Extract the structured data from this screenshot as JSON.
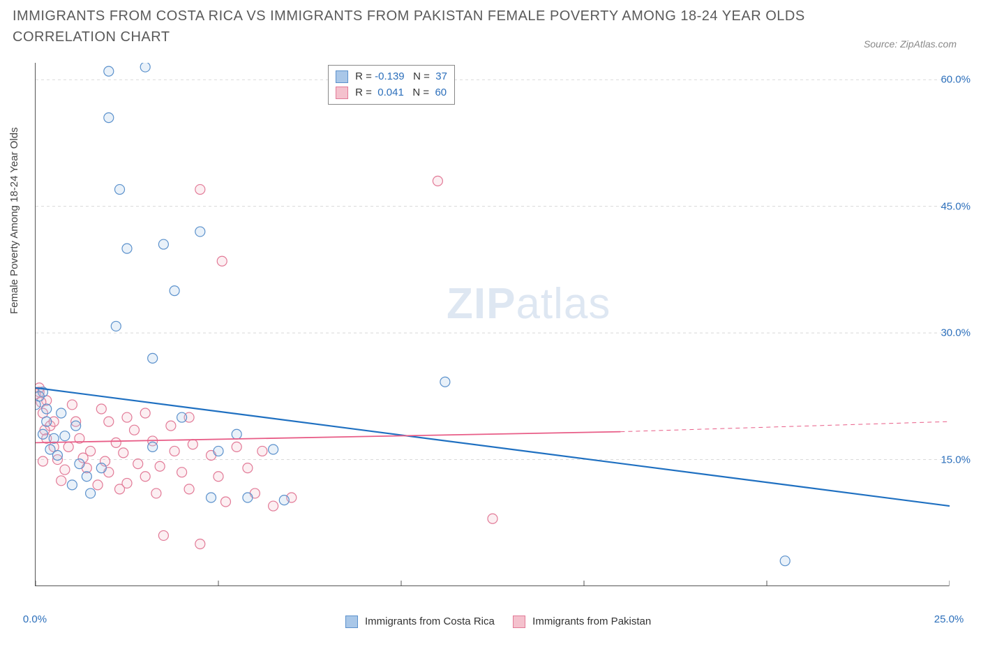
{
  "title": "IMMIGRANTS FROM COSTA RICA VS IMMIGRANTS FROM PAKISTAN FEMALE POVERTY AMONG 18-24 YEAR OLDS CORRELATION CHART",
  "source_label": "Source: ZipAtlas.com",
  "ylabel": "Female Poverty Among 18-24 Year Olds",
  "watermark_zip": "ZIP",
  "watermark_atlas": "atlas",
  "chart": {
    "type": "scatter",
    "xlim": [
      0,
      25
    ],
    "ylim": [
      0,
      62
    ],
    "x_ticks": [
      0,
      5,
      10,
      15,
      20,
      25
    ],
    "x_tick_labels": [
      "0.0%",
      "",
      "",
      "",
      "",
      "25.0%"
    ],
    "y_ticks": [
      15,
      30,
      45,
      60
    ],
    "y_tick_labels": [
      "15.0%",
      "30.0%",
      "45.0%",
      "60.0%"
    ],
    "grid_color": "#d9d9d9",
    "background": "#ffffff",
    "marker_radius": 7,
    "marker_stroke_width": 1.2,
    "marker_fill_opacity": 0.25
  },
  "series": {
    "costa_rica": {
      "label": "Immigrants from Costa Rica",
      "color_fill": "#a9c7e8",
      "color_stroke": "#5b91cc",
      "line_color": "#1f70c1",
      "line_width": 2.2,
      "r_value": "-0.139",
      "n_value": "37",
      "regression": {
        "x1": 0,
        "y1": 23.5,
        "x2": 25,
        "y2": 9.5
      },
      "points": [
        [
          0.2,
          23.0
        ],
        [
          0.0,
          21.5
        ],
        [
          0.3,
          19.5
        ],
        [
          0.2,
          18.0
        ],
        [
          0.5,
          17.5
        ],
        [
          0.4,
          16.2
        ],
        [
          0.6,
          15.5
        ],
        [
          0.1,
          22.5
        ],
        [
          0.8,
          17.8
        ],
        [
          1.0,
          12.0
        ],
        [
          1.2,
          14.5
        ],
        [
          1.4,
          13.0
        ],
        [
          1.5,
          11.0
        ],
        [
          2.0,
          61.0
        ],
        [
          2.2,
          30.8
        ],
        [
          2.0,
          55.5
        ],
        [
          2.5,
          40.0
        ],
        [
          2.3,
          47.0
        ],
        [
          3.0,
          61.5
        ],
        [
          3.2,
          16.5
        ],
        [
          3.2,
          27.0
        ],
        [
          3.5,
          40.5
        ],
        [
          3.8,
          35.0
        ],
        [
          4.0,
          20.0
        ],
        [
          4.5,
          42.0
        ],
        [
          4.8,
          10.5
        ],
        [
          5.0,
          16.0
        ],
        [
          5.5,
          18.0
        ],
        [
          5.8,
          10.5
        ],
        [
          6.5,
          16.2
        ],
        [
          6.8,
          10.2
        ],
        [
          11.2,
          24.2
        ],
        [
          20.5,
          3.0
        ],
        [
          1.8,
          14.0
        ],
        [
          0.7,
          20.5
        ],
        [
          1.1,
          19.0
        ],
        [
          0.3,
          21.0
        ]
      ]
    },
    "pakistan": {
      "label": "Immigrants from Pakistan",
      "color_fill": "#f4c1cd",
      "color_stroke": "#e27a97",
      "line_color": "#e85d87",
      "line_width": 1.8,
      "r_value": "0.041",
      "n_value": "60",
      "regression_solid": {
        "x1": 0,
        "y1": 17.0,
        "x2": 16,
        "y2": 18.3
      },
      "regression_dashed": {
        "x1": 16,
        "y1": 18.3,
        "x2": 25,
        "y2": 19.5
      },
      "points": [
        [
          0.1,
          23.0
        ],
        [
          0.3,
          22.0
        ],
        [
          0.2,
          20.5
        ],
        [
          0.4,
          19.0
        ],
        [
          0.3,
          17.5
        ],
        [
          0.5,
          16.5
        ],
        [
          0.6,
          15.0
        ],
        [
          0.2,
          14.8
        ],
        [
          0.8,
          13.8
        ],
        [
          0.7,
          12.5
        ],
        [
          1.0,
          21.5
        ],
        [
          1.1,
          19.5
        ],
        [
          1.2,
          17.5
        ],
        [
          1.5,
          16.0
        ],
        [
          1.4,
          14.0
        ],
        [
          1.7,
          12.0
        ],
        [
          1.8,
          21.0
        ],
        [
          2.0,
          19.5
        ],
        [
          2.2,
          17.0
        ],
        [
          2.0,
          13.5
        ],
        [
          2.3,
          11.5
        ],
        [
          2.5,
          20.0
        ],
        [
          2.7,
          18.5
        ],
        [
          2.8,
          14.5
        ],
        [
          2.5,
          12.2
        ],
        [
          3.0,
          20.5
        ],
        [
          3.2,
          17.2
        ],
        [
          3.0,
          13.0
        ],
        [
          3.3,
          11.0
        ],
        [
          3.5,
          6.0
        ],
        [
          3.7,
          19.0
        ],
        [
          3.8,
          16.0
        ],
        [
          4.0,
          13.5
        ],
        [
          4.2,
          11.5
        ],
        [
          4.5,
          5.0
        ],
        [
          4.2,
          20.0
        ],
        [
          4.5,
          47.0
        ],
        [
          4.8,
          15.5
        ],
        [
          5.0,
          13.0
        ],
        [
          5.1,
          38.5
        ],
        [
          5.2,
          10.0
        ],
        [
          5.5,
          16.5
        ],
        [
          5.8,
          14.0
        ],
        [
          6.0,
          11.0
        ],
        [
          6.2,
          16.0
        ],
        [
          6.5,
          9.5
        ],
        [
          7.0,
          10.5
        ],
        [
          11.0,
          48.0
        ],
        [
          12.5,
          8.0
        ],
        [
          1.3,
          15.2
        ],
        [
          1.9,
          14.8
        ],
        [
          2.4,
          15.8
        ],
        [
          3.4,
          14.2
        ],
        [
          4.3,
          16.8
        ],
        [
          0.1,
          23.5
        ],
        [
          0.0,
          22.8
        ],
        [
          0.15,
          21.8
        ],
        [
          0.25,
          18.5
        ],
        [
          0.5,
          19.5
        ],
        [
          0.9,
          16.5
        ]
      ]
    }
  },
  "stats_box": {
    "r_label": "R =",
    "n_label": "N ="
  },
  "bottom_legend": {
    "items": [
      {
        "key": "costa_rica"
      },
      {
        "key": "pakistan"
      }
    ]
  }
}
